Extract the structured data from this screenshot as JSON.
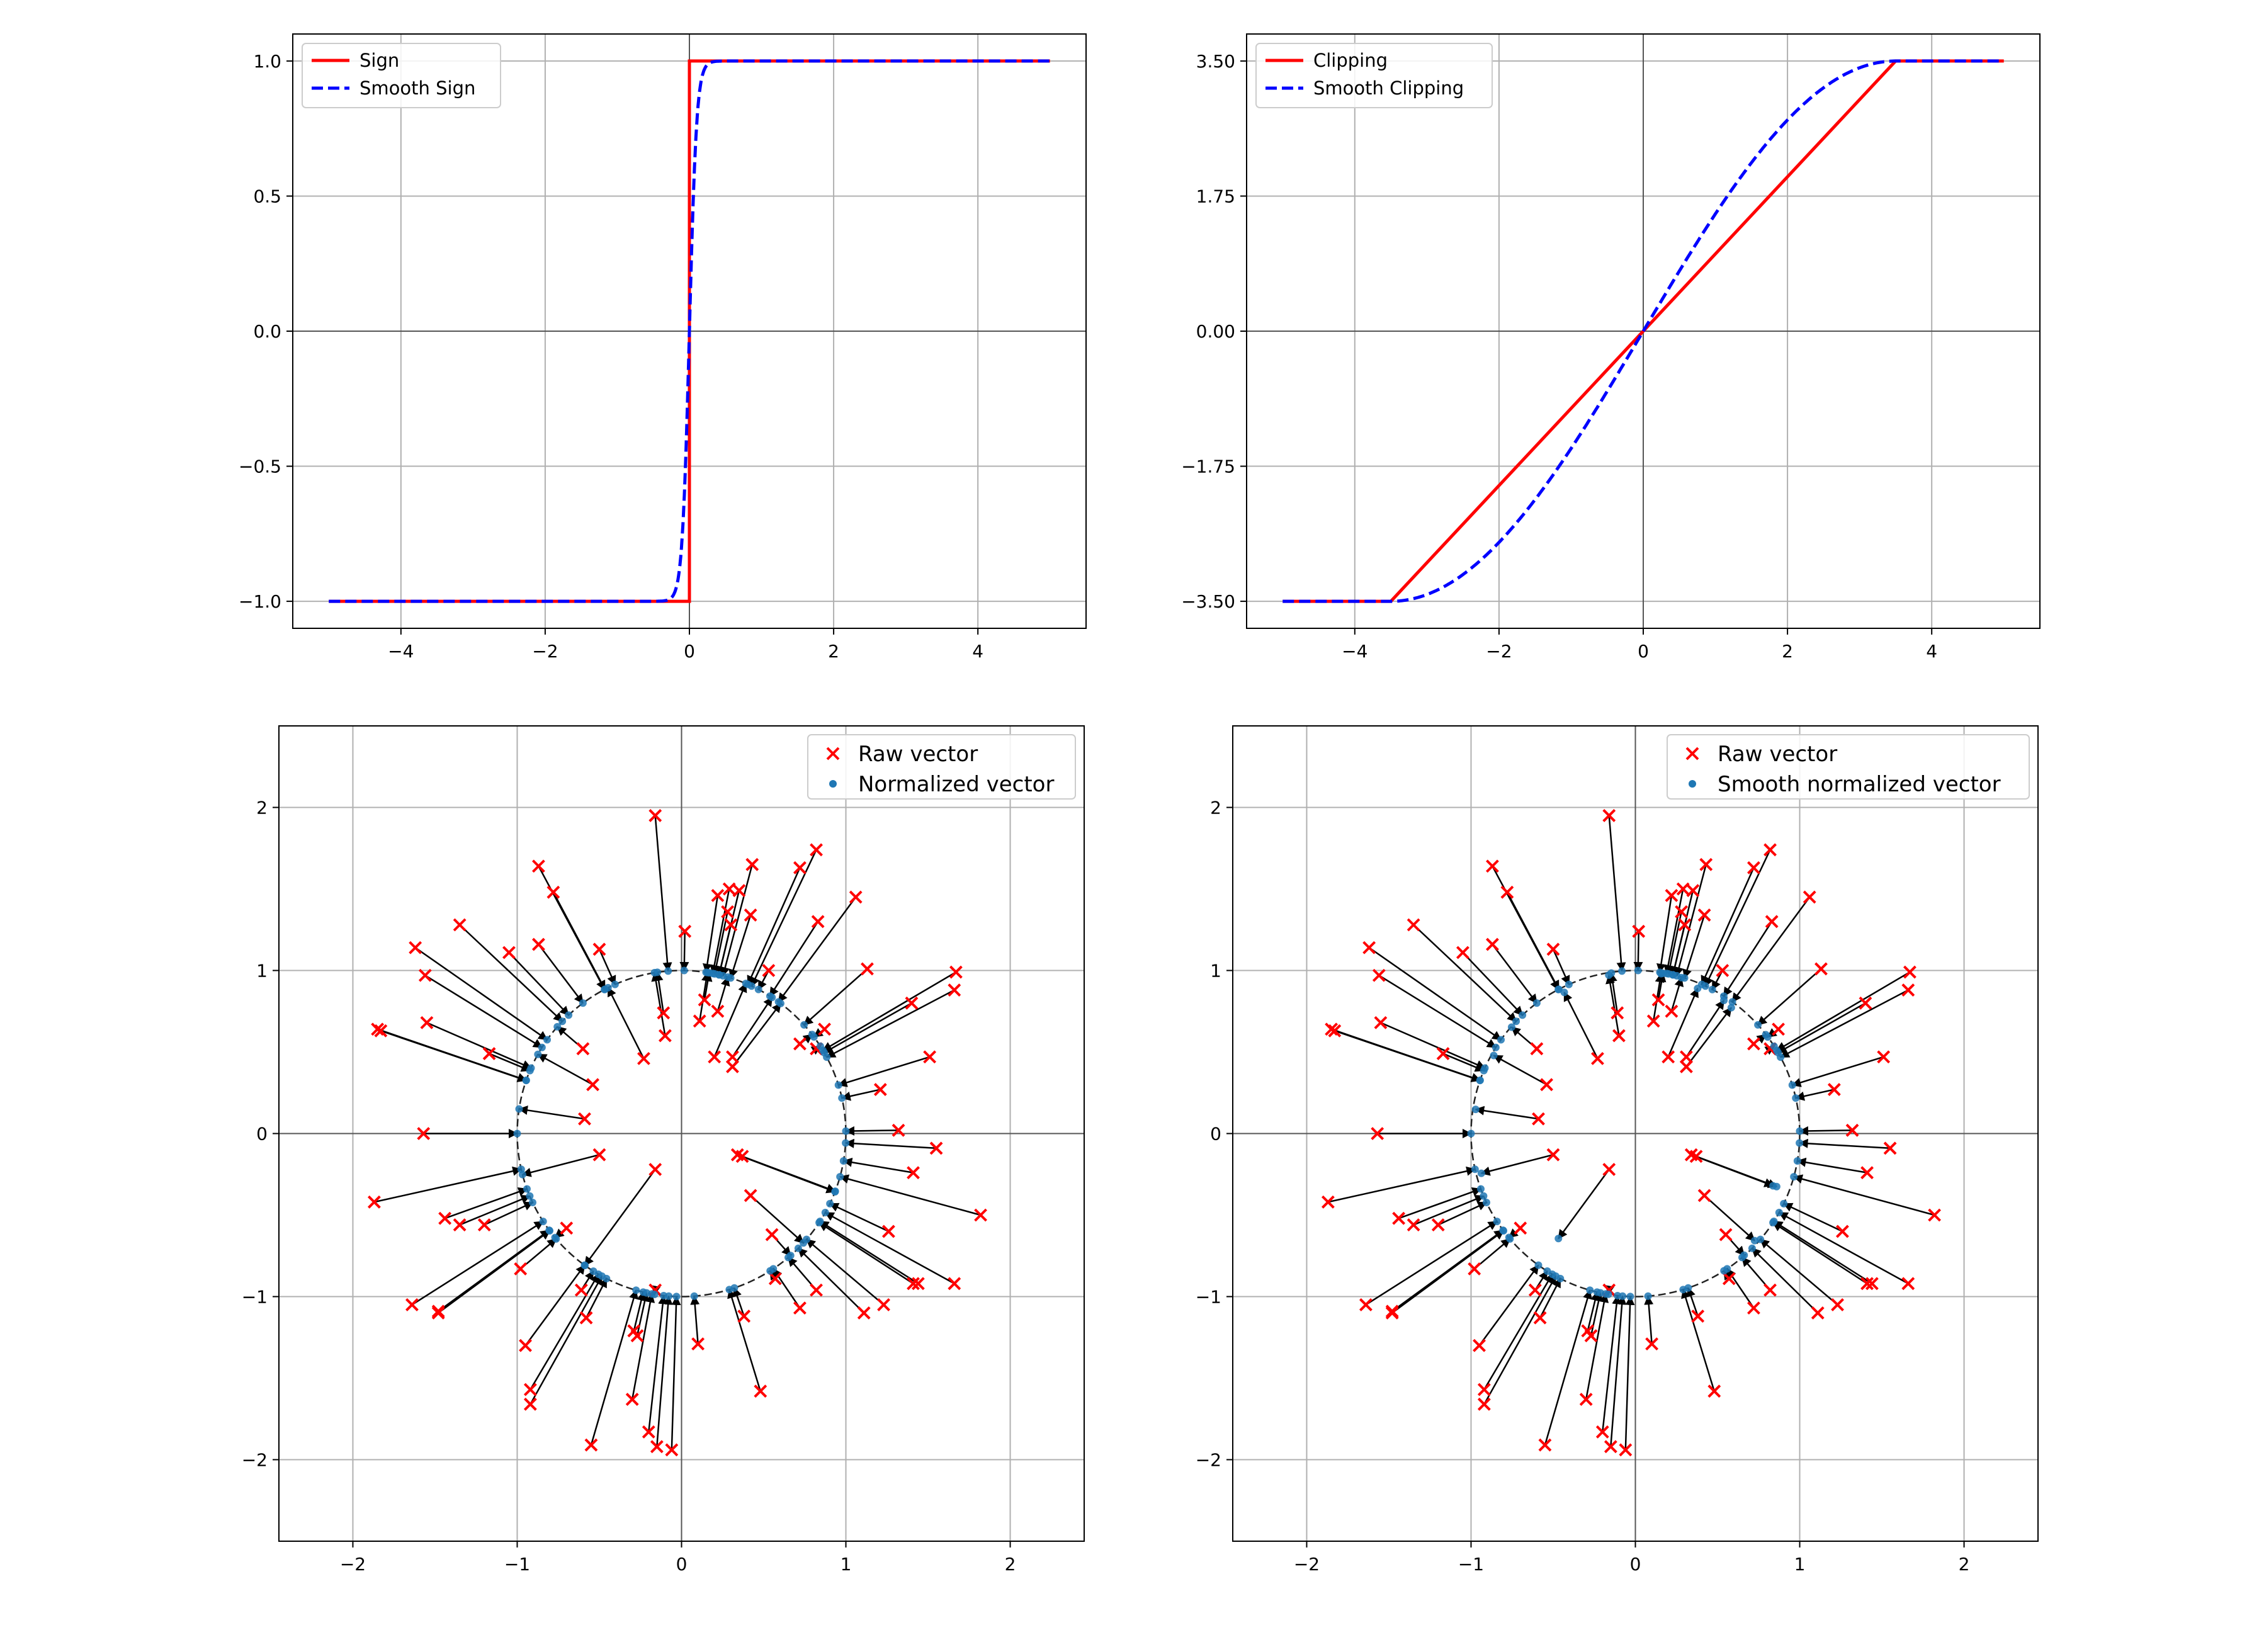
{
  "chart_data": [
    {
      "type": "line",
      "series": [
        {
          "name": "Sign",
          "color": "#ff0000",
          "style": "solid",
          "x": [
            -5,
            -0.0001,
            0,
            0.0001,
            5
          ],
          "y": [
            -1,
            -1,
            0,
            1,
            1
          ]
        },
        {
          "name": "Smooth Sign",
          "color": "#0000ff",
          "style": "dashed",
          "formula": "tanh(10x)",
          "x": [
            -5,
            -0.4,
            -0.3,
            -0.2,
            -0.1,
            0,
            0.1,
            0.2,
            0.3,
            0.4,
            5
          ],
          "y": [
            -1,
            -0.999,
            -0.995,
            -0.964,
            -0.762,
            0,
            0.762,
            0.964,
            0.995,
            0.999,
            1
          ]
        }
      ],
      "xlim": [
        -5.5,
        5.5
      ],
      "ylim": [
        -1.1,
        1.1
      ],
      "xticks": [
        -4,
        -2,
        0,
        2,
        4
      ],
      "xtick_labels": [
        "−4",
        "−2",
        "0",
        "2",
        "4"
      ],
      "yticks": [
        1.0,
        0.5,
        0.0,
        -0.5,
        -1.0
      ],
      "ytick_labels": [
        "1.0",
        "0.5",
        "0.0",
        "−0.5",
        "−1.0"
      ],
      "grid": true,
      "legend": "upper left"
    },
    {
      "type": "line",
      "series": [
        {
          "name": "Clipping",
          "color": "#ff0000",
          "style": "solid",
          "x": [
            -5,
            -3.5,
            3.5,
            5
          ],
          "y": [
            -3.5,
            -3.5,
            3.5,
            3.5
          ]
        },
        {
          "name": "Smooth Clipping",
          "color": "#0000ff",
          "style": "dashed",
          "formula": "3.5*sin(pi*x/7) clipped at |x|=3.5",
          "x": [
            -5,
            -3.5,
            -3,
            -2.5,
            -2,
            -1.5,
            -1,
            -0.5,
            0,
            0.5,
            1,
            1.5,
            2,
            2.5,
            3,
            3.5,
            5
          ],
          "y": [
            -3.5,
            -3.5,
            -3.45,
            -3.16,
            -2.74,
            -2.19,
            -1.52,
            -0.78,
            0,
            0.78,
            1.52,
            2.19,
            2.74,
            3.16,
            3.45,
            3.5,
            3.5
          ]
        }
      ],
      "xlim": [
        -5.5,
        5.5
      ],
      "ylim": [
        -3.85,
        3.85
      ],
      "xticks": [
        -4,
        -2,
        0,
        2,
        4
      ],
      "xtick_labels": [
        "−4",
        "−2",
        "0",
        "2",
        "4"
      ],
      "yticks": [
        3.5,
        1.75,
        0,
        -1.75,
        -3.5
      ],
      "ytick_labels": [
        "3.50",
        "1.75",
        "0.00",
        "−1.75",
        "−3.50"
      ],
      "grid": true,
      "legend": "upper left"
    },
    {
      "type": "scatter",
      "series": [
        {
          "name": "Raw vector",
          "color": "#ff0000",
          "marker": "x"
        },
        {
          "name": "Normalized vector",
          "color": "#1f77b4",
          "marker": "o"
        }
      ],
      "arrows": "raw to normalized",
      "circle": "unit circle, dashed",
      "xlim": [
        -2.45,
        2.45
      ],
      "ylim": [
        -2.5,
        2.5
      ],
      "xticks": [
        -2,
        -1,
        0,
        1,
        2
      ],
      "xtick_labels": [
        "−2",
        "−1",
        "0",
        "1",
        "2"
      ],
      "yticks": [
        2,
        1,
        0,
        -1,
        -2
      ],
      "ytick_labels": [
        "2",
        "1",
        "0",
        "−1",
        "−2"
      ],
      "grid": true,
      "legend": "upper right",
      "raw_points": [
        [
          -0.16,
          1.95
        ],
        [
          -0.87,
          1.64
        ],
        [
          -0.78,
          1.48
        ],
        [
          -1.35,
          1.28
        ],
        [
          -1.62,
          1.14
        ],
        [
          -1.05,
          1.11
        ],
        [
          -0.87,
          1.16
        ],
        [
          -0.5,
          1.13
        ],
        [
          -1.56,
          0.97
        ],
        [
          -1.85,
          0.64
        ],
        [
          -1.83,
          0.63
        ],
        [
          -1.55,
          0.68
        ],
        [
          -1.17,
          0.49
        ],
        [
          -0.6,
          0.52
        ],
        [
          -0.54,
          0.3
        ],
        [
          -0.59,
          0.09
        ],
        [
          -1.57,
          0.0
        ],
        [
          -0.5,
          -0.13
        ],
        [
          -1.87,
          -0.42
        ],
        [
          -1.44,
          -0.52
        ],
        [
          -1.35,
          -0.56
        ],
        [
          -1.2,
          -0.56
        ],
        [
          -0.7,
          -0.58
        ],
        [
          -0.98,
          -0.83
        ],
        [
          -0.61,
          -0.96
        ],
        [
          -0.58,
          -1.13
        ],
        [
          -1.64,
          -1.05
        ],
        [
          -1.48,
          -1.09
        ],
        [
          -1.48,
          -1.1
        ],
        [
          -0.95,
          -1.3
        ],
        [
          -0.92,
          -1.57
        ],
        [
          -0.92,
          -1.66
        ],
        [
          -0.55,
          -1.91
        ],
        [
          -0.29,
          -1.21
        ],
        [
          -0.27,
          -1.24
        ],
        [
          -0.3,
          -1.63
        ],
        [
          -0.2,
          -1.83
        ],
        [
          -0.15,
          -1.92
        ],
        [
          -0.06,
          -1.94
        ],
        [
          0.1,
          -1.29
        ],
        [
          0.38,
          -1.12
        ],
        [
          0.48,
          -1.58
        ],
        [
          -0.16,
          -0.96
        ],
        [
          -0.16,
          -0.22
        ],
        [
          0.34,
          -0.13
        ],
        [
          0.37,
          -0.14
        ],
        [
          0.42,
          -0.38
        ],
        [
          0.55,
          -0.62
        ],
        [
          0.57,
          -0.89
        ],
        [
          0.72,
          -1.07
        ],
        [
          0.82,
          -0.96
        ],
        [
          1.11,
          -1.1
        ],
        [
          1.23,
          -1.05
        ],
        [
          1.26,
          -0.6
        ],
        [
          1.41,
          -0.92
        ],
        [
          1.44,
          -0.92
        ],
        [
          1.66,
          -0.92
        ],
        [
          1.82,
          -0.5
        ],
        [
          1.41,
          -0.24
        ],
        [
          1.55,
          -0.09
        ],
        [
          1.32,
          0.02
        ],
        [
          1.21,
          0.27
        ],
        [
          1.51,
          0.47
        ],
        [
          1.4,
          0.8
        ],
        [
          1.13,
          1.01
        ],
        [
          1.66,
          0.88
        ],
        [
          1.67,
          0.99
        ],
        [
          0.87,
          0.64
        ],
        [
          1.06,
          1.45
        ],
        [
          0.83,
          1.3
        ],
        [
          0.42,
          1.34
        ],
        [
          0.31,
          0.41
        ],
        [
          0.31,
          0.47
        ],
        [
          0.2,
          0.47
        ],
        [
          0.14,
          0.82
        ],
        [
          0.11,
          0.69
        ],
        [
          0.22,
          0.75
        ],
        [
          0.3,
          1.28
        ],
        [
          0.28,
          1.36
        ],
        [
          0.35,
          1.49
        ],
        [
          0.43,
          1.65
        ],
        [
          0.72,
          1.63
        ],
        [
          0.82,
          1.74
        ],
        [
          -0.11,
          0.74
        ],
        [
          -0.1,
          0.6
        ],
        [
          -0.23,
          0.46
        ],
        [
          0.02,
          1.24
        ],
        [
          0.22,
          1.46
        ],
        [
          0.29,
          1.5
        ],
        [
          0.53,
          1.0
        ],
        [
          0.72,
          0.55
        ],
        [
          0.82,
          0.52
        ]
      ]
    },
    {
      "type": "scatter",
      "series": [
        {
          "name": "Raw vector",
          "color": "#ff0000",
          "marker": "x"
        },
        {
          "name": "Smooth normalized vector",
          "color": "#1f77b4",
          "marker": "o"
        }
      ],
      "arrows": "raw to smooth-normalized",
      "circle": "unit circle, dashed",
      "xlim": [
        -2.45,
        2.45
      ],
      "ylim": [
        -2.5,
        2.5
      ],
      "xticks": [
        -2,
        -1,
        0,
        1,
        2
      ],
      "xtick_labels": [
        "−2",
        "−1",
        "0",
        "1",
        "2"
      ],
      "yticks": [
        2,
        1,
        0,
        -1,
        -2
      ],
      "ytick_labels": [
        "2",
        "1",
        "0",
        "−1",
        "−2"
      ],
      "grid": true,
      "legend": "upper right"
    }
  ]
}
